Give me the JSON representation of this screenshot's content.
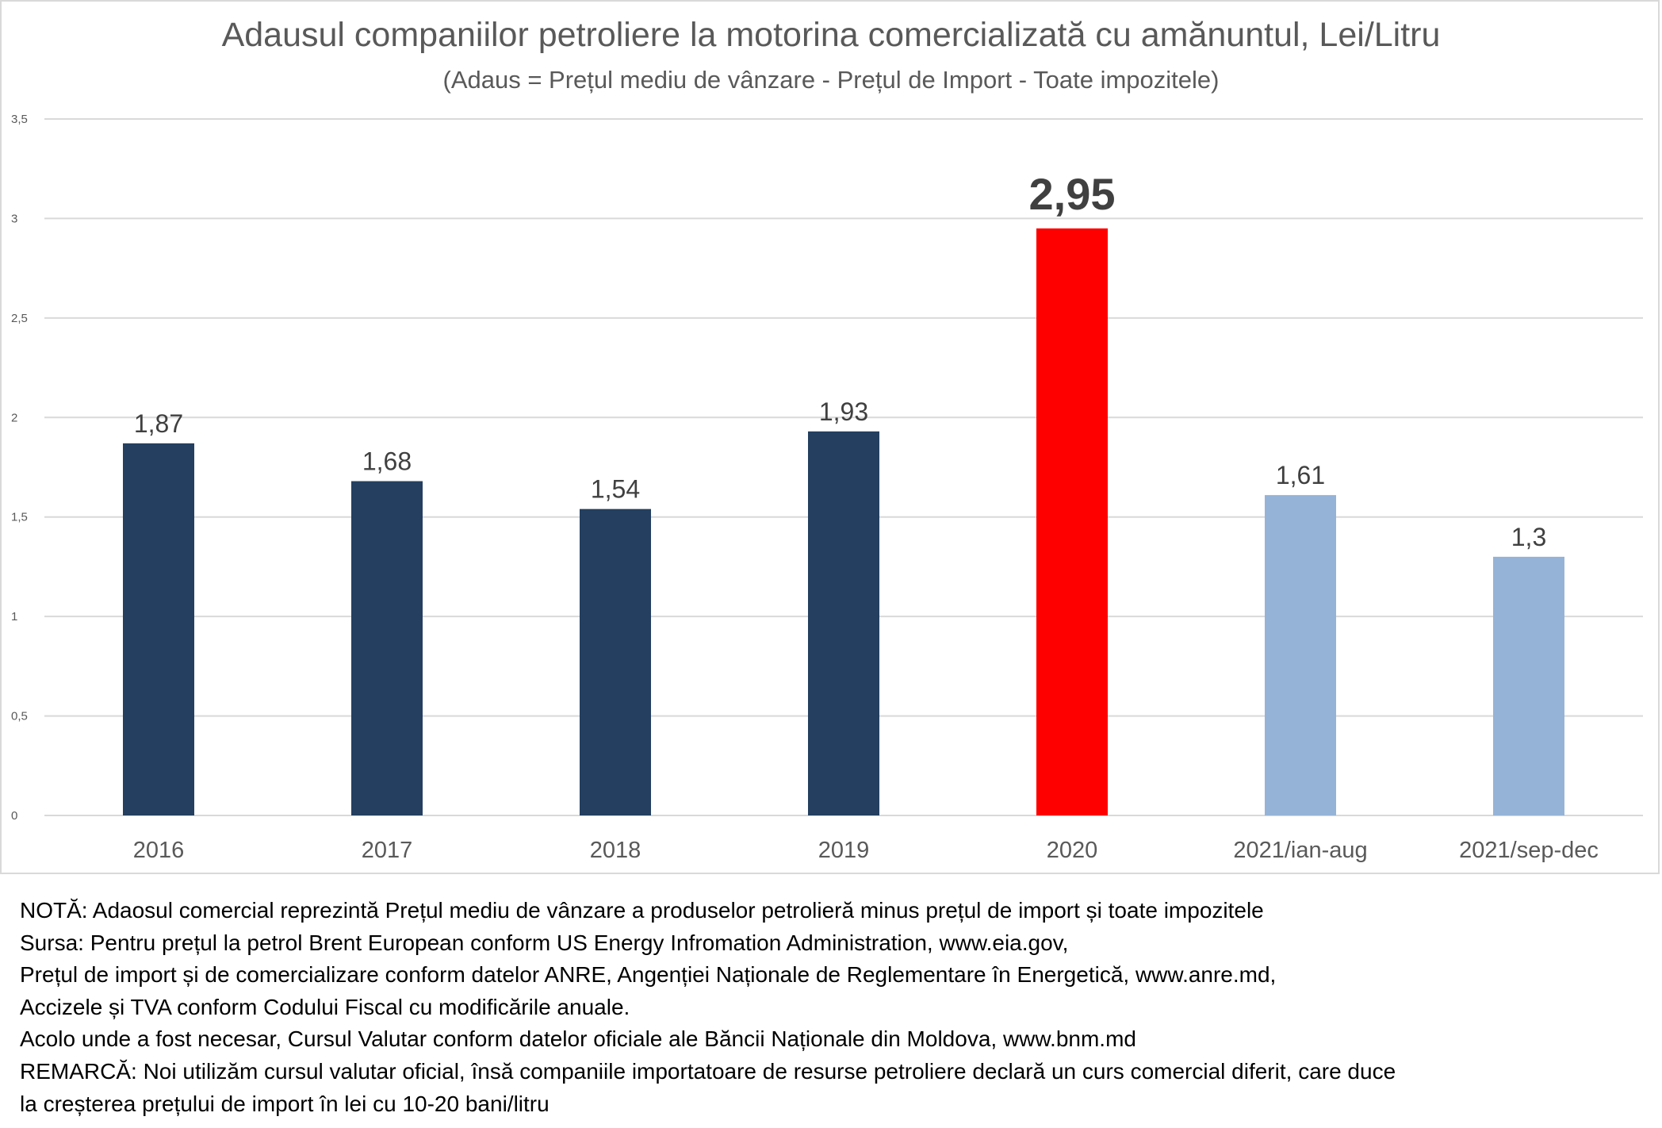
{
  "chart_data": {
    "type": "bar",
    "title": "Adausul companiilor petroliere la motorina comercializată cu amănuntul, Lei/Litru",
    "subtitle": "(Adaus = Prețul mediu de vânzare - Prețul de Import - Toate impozitele)",
    "categories": [
      "2016",
      "2017",
      "2018",
      "2019",
      "2020",
      "2021/ian-aug",
      "2021/sep-dec"
    ],
    "values": [
      1.87,
      1.68,
      1.54,
      1.93,
      2.95,
      1.61,
      1.3
    ],
    "value_labels": [
      "1,87",
      "1,68",
      "1,54",
      "1,93",
      "2,95",
      "1,61",
      "1,3"
    ],
    "colors": [
      "#243F60",
      "#243F60",
      "#243F60",
      "#243F60",
      "#FF0000",
      "#95B3D7",
      "#95B3D7"
    ],
    "highlight_index": 4,
    "ylim": [
      0,
      3.5
    ],
    "yticks": [
      0,
      0.5,
      1,
      1.5,
      2,
      2.5,
      3,
      3.5
    ],
    "ytick_labels": [
      "0",
      "0,5",
      "1",
      "1,5",
      "2",
      "2,5",
      "3",
      "3,5"
    ],
    "grid": true,
    "xlabel": "",
    "ylabel": ""
  },
  "notes": [
    "NOTĂ: Adaosul comercial reprezintă Prețul mediu de vânzare a produselor petrolieră minus prețul de import și toate impozitele",
    "Sursa: Pentru prețul la petrol Brent European conform US Energy Infromation Administration, www.eia.gov,",
    "Prețul de import și de comercializare conform datelor ANRE, Angenției Naționale de Reglementare în Energetică, www.anre.md,",
    "Accizele și TVA conform Codului Fiscal cu modificările anuale.",
    "Acolo unde a fost necesar, Cursul Valutar conform datelor oficiale ale Băncii Naționale din Moldova, www.bnm.md",
    "REMARCĂ: Noi utilizăm cursul valutar oficial, însă companiile importatoare de resurse petroliere declară un curs comercial diferit, care duce",
    "la creșterea prețului de import în lei cu 10-20 bani/litru"
  ]
}
